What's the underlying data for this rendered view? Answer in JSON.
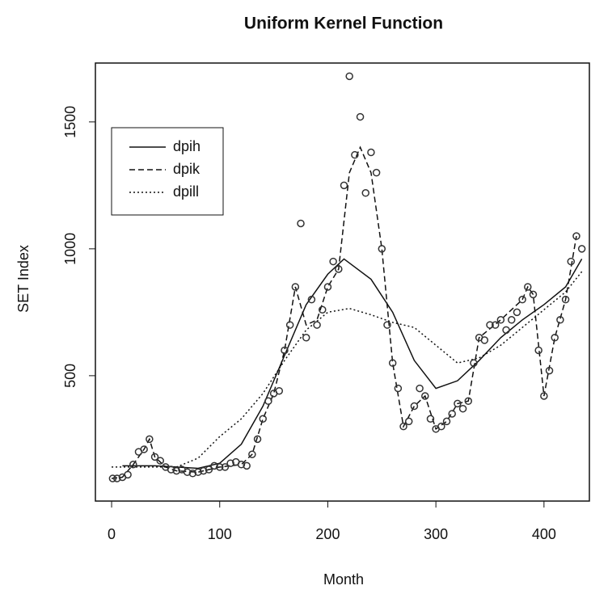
{
  "chart_data": {
    "type": "scatter",
    "title": "Uniform Kernel Function",
    "x_label": "Month",
    "y_label": "SET Index",
    "xlim": [
      -15,
      442
    ],
    "ylim": [
      6,
      1732
    ],
    "xticks": [
      0,
      100,
      200,
      300,
      400
    ],
    "yticks": [
      500,
      1000,
      1500
    ],
    "color": "#333333",
    "legend_position": "upper left",
    "x": [
      1,
      5,
      10,
      15,
      20,
      25,
      30,
      35,
      40,
      45,
      50,
      55,
      60,
      65,
      70,
      75,
      80,
      85,
      90,
      95,
      100,
      105,
      110,
      115,
      120,
      125,
      130,
      135,
      140,
      145,
      150,
      155,
      160,
      165,
      170,
      175,
      180,
      185,
      190,
      195,
      200,
      205,
      210,
      215,
      220,
      225,
      230,
      235,
      240,
      245,
      250,
      255,
      260,
      265,
      270,
      275,
      280,
      285,
      290,
      295,
      300,
      305,
      310,
      315,
      320,
      325,
      330,
      335,
      340,
      345,
      350,
      355,
      360,
      365,
      370,
      375,
      380,
      385,
      390,
      395,
      400,
      405,
      410,
      415,
      420,
      425,
      430,
      435
    ],
    "values": [
      95,
      95,
      100,
      110,
      150,
      200,
      210,
      250,
      180,
      165,
      140,
      130,
      125,
      130,
      120,
      115,
      120,
      125,
      130,
      145,
      140,
      140,
      155,
      160,
      150,
      145,
      190,
      250,
      330,
      400,
      430,
      440,
      600,
      700,
      850,
      1100,
      650,
      800,
      700,
      760,
      850,
      950,
      920,
      1250,
      1680,
      1370,
      1520,
      1220,
      1380,
      1300,
      1000,
      700,
      550,
      450,
      300,
      320,
      380,
      450,
      420,
      330,
      290,
      300,
      320,
      350,
      390,
      370,
      400,
      550,
      650,
      640,
      700,
      700,
      720,
      680,
      720,
      750,
      800,
      850,
      820,
      600,
      420,
      520,
      650,
      720,
      800,
      950,
      1050,
      1000
    ],
    "lines": [
      {
        "name": "dpih",
        "dash": "none",
        "x": [
          10,
          40,
          60,
          80,
          100,
          120,
          140,
          160,
          180,
          200,
          215,
          240,
          260,
          280,
          300,
          320,
          340,
          360,
          380,
          400,
          420,
          435
        ],
        "values": [
          145,
          145,
          140,
          135,
          155,
          230,
          380,
          580,
          780,
          900,
          960,
          880,
          750,
          560,
          450,
          480,
          560,
          650,
          720,
          780,
          850,
          960
        ]
      },
      {
        "name": "dpik",
        "dash": "7,4",
        "x": [
          0,
          10,
          20,
          30,
          35,
          40,
          50,
          60,
          80,
          100,
          120,
          130,
          140,
          150,
          160,
          170,
          180,
          190,
          200,
          210,
          220,
          230,
          240,
          250,
          260,
          270,
          280,
          290,
          300,
          310,
          320,
          330,
          340,
          360,
          380,
          385,
          390,
          400,
          410,
          420,
          430
        ],
        "values": [
          95,
          100,
          150,
          210,
          250,
          180,
          140,
          125,
          120,
          140,
          150,
          190,
          330,
          430,
          600,
          850,
          700,
          720,
          850,
          920,
          1300,
          1400,
          1300,
          1000,
          550,
          300,
          380,
          420,
          290,
          320,
          390,
          400,
          650,
          720,
          800,
          850,
          820,
          420,
          650,
          800,
          1050
        ]
      },
      {
        "name": "dpill",
        "dash": "2,3",
        "x": [
          0,
          40,
          60,
          80,
          100,
          120,
          140,
          160,
          180,
          200,
          220,
          240,
          260,
          280,
          300,
          320,
          340,
          360,
          380,
          400,
          420,
          435
        ],
        "values": [
          140,
          140,
          140,
          175,
          260,
          330,
          430,
          560,
          680,
          750,
          765,
          740,
          710,
          690,
          620,
          550,
          570,
          620,
          690,
          760,
          830,
          910
        ]
      }
    ]
  }
}
